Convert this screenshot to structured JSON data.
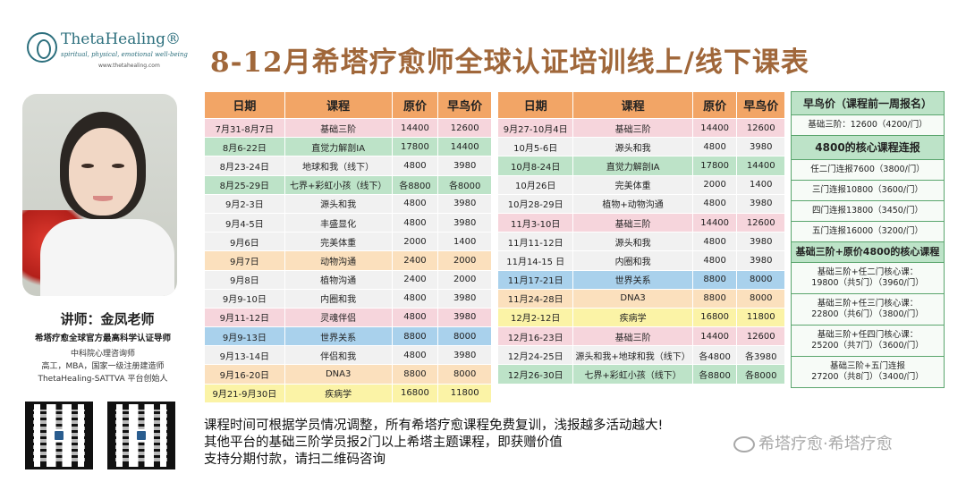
{
  "logo": {
    "name": "ThetaHealing®",
    "tagline": "spiritual, physical, emotional well-being",
    "url": "www.thetahealing.com"
  },
  "title": "8-12月希塔疗愈师全球认证培训线上/线下课表",
  "lecturer": {
    "name": "讲师：金凤老师",
    "subtitle": "希塔疗愈全球官方最高科学认证导师",
    "lines": [
      "中科院心理咨询师",
      "高工，MBA，国家一级注册建造师",
      "ThetaHealing-SATTVA 平台创始人"
    ]
  },
  "headers": [
    "日期",
    "课程",
    "原价",
    "早鸟价"
  ],
  "table1": [
    {
      "date": "7月31-8月7日",
      "course": "基础三阶",
      "price": "14400",
      "early": "12600",
      "color": "pink"
    },
    {
      "date": "8月6-22日",
      "course": "直觉力解剖IA",
      "price": "17800",
      "early": "14400",
      "color": "green"
    },
    {
      "date": "8月23-24日",
      "course": "地球和我（线下）",
      "price": "4800",
      "early": "3980",
      "color": "white"
    },
    {
      "date": "8月25-29日",
      "course": "七界+彩虹小孩（线下）",
      "price": "各8800",
      "early": "各8000",
      "color": "green"
    },
    {
      "date": "9月2-3日",
      "course": "源头和我",
      "price": "4800",
      "early": "3980",
      "color": "white"
    },
    {
      "date": "9月4-5日",
      "course": "丰盛显化",
      "price": "4800",
      "early": "3980",
      "color": "white"
    },
    {
      "date": "9月6日",
      "course": "完美体重",
      "price": "2000",
      "early": "1400",
      "color": "white"
    },
    {
      "date": "9月7日",
      "course": "动物沟通",
      "price": "2400",
      "early": "2000",
      "color": "orange"
    },
    {
      "date": "9月8日",
      "course": "植物沟通",
      "price": "2400",
      "early": "2000",
      "color": "white"
    },
    {
      "date": "9月9-10日",
      "course": "内圈和我",
      "price": "4800",
      "early": "3980",
      "color": "white"
    },
    {
      "date": "9月11-12日",
      "course": "灵魂伴侣",
      "price": "4800",
      "early": "3980",
      "color": "pink"
    },
    {
      "date": "9月9-13日",
      "course": "世界关系",
      "price": "8800",
      "early": "8000",
      "color": "blue"
    },
    {
      "date": "9月13-14日",
      "course": "伴侣和我",
      "price": "4800",
      "early": "3980",
      "color": "white"
    },
    {
      "date": "9月16-20日",
      "course": "DNA3",
      "price": "8800",
      "early": "8000",
      "color": "orange"
    },
    {
      "date": "9月21-9月30日",
      "course": "疾病学",
      "price": "16800",
      "early": "11800",
      "color": "yellow"
    }
  ],
  "table2": [
    {
      "date": "9月27-10月4日",
      "course": "基础三阶",
      "price": "14400",
      "early": "12600",
      "color": "pink"
    },
    {
      "date": "10月5-6日",
      "course": "源头和我",
      "price": "4800",
      "early": "3980",
      "color": "white"
    },
    {
      "date": "10月8-24日",
      "course": "直觉力解剖IA",
      "price": "17800",
      "early": "14400",
      "color": "green"
    },
    {
      "date": "10月26日",
      "course": "完美体重",
      "price": "2000",
      "early": "1400",
      "color": "white"
    },
    {
      "date": "10月28-29日",
      "course": "植物+动物沟通",
      "price": "4800",
      "early": "3980",
      "color": "white"
    },
    {
      "date": "11月3-10日",
      "course": "基础三阶",
      "price": "14400",
      "early": "12600",
      "color": "pink"
    },
    {
      "date": "11月11-12日",
      "course": "源头和我",
      "price": "4800",
      "early": "3980",
      "color": "white"
    },
    {
      "date": "11月14-15 日",
      "course": "内圈和我",
      "price": "4800",
      "early": "3980",
      "color": "white"
    },
    {
      "date": "11月17-21日",
      "course": "世界关系",
      "price": "8800",
      "early": "8000",
      "color": "blue"
    },
    {
      "date": "11月24-28日",
      "course": "DNA3",
      "price": "8800",
      "early": "8000",
      "color": "orange"
    },
    {
      "date": "12月2-12日",
      "course": "疾病学",
      "price": "16800",
      "early": "11800",
      "color": "yellow"
    },
    {
      "date": "12月16-23日",
      "course": "基础三阶",
      "price": "14400",
      "early": "12600",
      "color": "pink"
    },
    {
      "date": "12月24-25日",
      "course": "源头和我+地球和我（线下）",
      "price": "各4800",
      "early": "各3980",
      "color": "white"
    },
    {
      "date": "12月26-30日",
      "course": "七界+彩虹小孩（线下）",
      "price": "各8800",
      "early": "各8000",
      "color": "green"
    }
  ],
  "side": [
    {
      "type": "hdr",
      "text": "早鸟价（课程前一周报名）"
    },
    {
      "type": "item",
      "text": "基础三阶：12600（4200/门）"
    },
    {
      "type": "hdr",
      "text": "4800的核心课程连报"
    },
    {
      "type": "item",
      "text": "任二门连报7600（3800/门）"
    },
    {
      "type": "item",
      "text": "三门连报10800（3600/门）"
    },
    {
      "type": "item",
      "text": "四门连报13800（3450/门）"
    },
    {
      "type": "item",
      "text": "五门连报16000（3200/门）"
    },
    {
      "type": "hdr-sm",
      "text": "基础三阶+原价4800的核心课程"
    },
    {
      "type": "item-tall",
      "line1": "基础三阶+任二门核心课：",
      "line2": "19800（共5门）（3960/门）"
    },
    {
      "type": "item-tall",
      "line1": "基础三阶+任三门核心课：",
      "line2": "22800（共6门）（3800/门）"
    },
    {
      "type": "item-tall",
      "line1": "基础三阶+任四门核心课：",
      "line2": "25200（共7门）（3600/门）"
    },
    {
      "type": "item-tall",
      "line1": "基础三阶+五门连报",
      "line2": "27200（共8门）（3400/门）"
    }
  ],
  "notes": [
    "课程时间可根据学员情况调整，所有希塔疗愈课程免费复训，浅报越多活动越大!",
    "其他平台的基础三阶学员报2门以上希塔主题课程，即获赠价值",
    "支持分期付款，请扫二维码咨询"
  ],
  "watermark": "希塔疗愈·希塔疗愈"
}
